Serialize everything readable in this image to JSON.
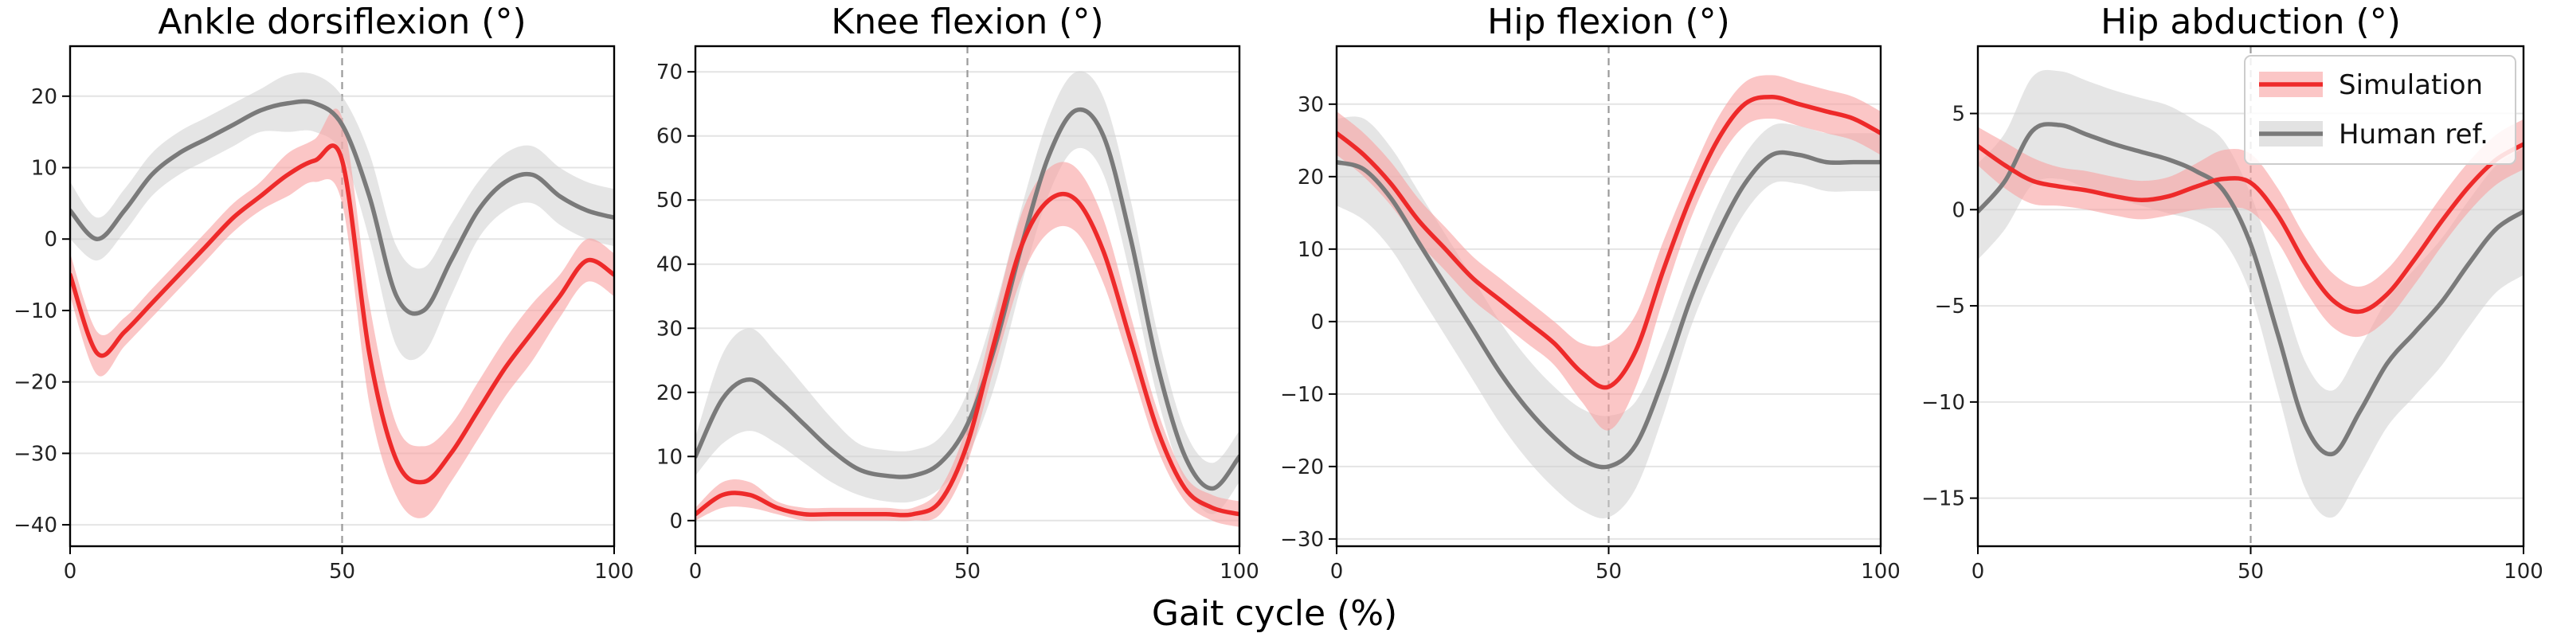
{
  "figure": {
    "xlabel": "Gait cycle (%)"
  },
  "legend": {
    "placement": "top-right",
    "items": [
      {
        "label": "Simulation",
        "color": "#ee2a2a",
        "band_color": "#f9a0a0"
      },
      {
        "label": "Human ref.",
        "color": "#7a7a7a",
        "band_color": "#cfcfcf"
      }
    ]
  },
  "chart_data": [
    {
      "type": "line",
      "title": "Ankle dorsiflexion (°)",
      "xlim": [
        0,
        100
      ],
      "ylim": [
        -43,
        27
      ],
      "xticks": [
        0,
        50,
        100
      ],
      "yticks": [
        -40,
        -30,
        -20,
        -10,
        0,
        10,
        20
      ],
      "grid": "horizontal",
      "vline": 50,
      "x": [
        0,
        5,
        10,
        15,
        20,
        25,
        30,
        35,
        40,
        45,
        50,
        55,
        60,
        65,
        70,
        75,
        80,
        85,
        90,
        95,
        100
      ],
      "series": [
        {
          "name": "Simulation",
          "mean": [
            -5,
            -16,
            -13,
            -9,
            -5,
            -1,
            3,
            6,
            9,
            11,
            11,
            -16,
            -31,
            -34,
            -30,
            -24,
            -18,
            -13,
            -8,
            -3,
            -5
          ],
          "sd": [
            3,
            3,
            2,
            2,
            2,
            2,
            2,
            2,
            3,
            3,
            6,
            7,
            5,
            5,
            4,
            4,
            4,
            4,
            3,
            3,
            3
          ]
        },
        {
          "name": "Human ref.",
          "mean": [
            4,
            0,
            4,
            9,
            12,
            14,
            16,
            18,
            19,
            19,
            16,
            6,
            -8,
            -10,
            -3,
            4,
            8,
            9,
            6,
            4,
            3
          ],
          "sd": [
            4,
            3,
            3,
            3,
            3,
            3,
            3,
            3,
            4,
            4,
            4,
            6,
            7,
            6,
            5,
            4,
            4,
            4,
            4,
            4,
            4
          ]
        }
      ]
    },
    {
      "type": "line",
      "title": "Knee flexion (°)",
      "xlim": [
        0,
        100
      ],
      "ylim": [
        -4,
        74
      ],
      "xticks": [
        0,
        50,
        100
      ],
      "yticks": [
        0,
        10,
        20,
        30,
        40,
        50,
        60,
        70
      ],
      "grid": "horizontal",
      "vline": 50,
      "x": [
        0,
        5,
        10,
        15,
        20,
        25,
        30,
        35,
        40,
        45,
        50,
        55,
        60,
        65,
        70,
        75,
        80,
        85,
        90,
        95,
        100
      ],
      "series": [
        {
          "name": "Simulation",
          "mean": [
            1,
            4,
            4,
            2,
            1,
            1,
            1,
            1,
            1,
            3,
            12,
            28,
            43,
            50,
            50,
            42,
            28,
            14,
            5,
            2,
            1
          ],
          "sd": [
            1,
            2,
            2,
            1,
            1,
            1,
            1,
            1,
            1,
            2,
            3,
            4,
            5,
            5,
            5,
            5,
            4,
            3,
            2,
            2,
            2
          ]
        },
        {
          "name": "Human ref.",
          "mean": [
            10,
            19,
            22,
            19,
            15,
            11,
            8,
            7,
            7,
            9,
            15,
            27,
            43,
            57,
            64,
            60,
            44,
            24,
            10,
            5,
            10
          ],
          "sd": [
            3,
            7,
            8,
            7,
            6,
            5,
            4,
            4,
            4,
            4,
            5,
            6,
            6,
            6,
            6,
            6,
            6,
            5,
            4,
            4,
            4
          ]
        }
      ]
    },
    {
      "type": "line",
      "title": "Hip flexion (°)",
      "xlim": [
        0,
        100
      ],
      "ylim": [
        -31,
        38
      ],
      "xticks": [
        0,
        50,
        100
      ],
      "yticks": [
        -30,
        -20,
        -10,
        0,
        10,
        20,
        30
      ],
      "grid": "horizontal",
      "vline": 50,
      "x": [
        0,
        5,
        10,
        15,
        20,
        25,
        30,
        35,
        40,
        45,
        50,
        55,
        60,
        65,
        70,
        75,
        80,
        85,
        90,
        95,
        100
      ],
      "series": [
        {
          "name": "Simulation",
          "mean": [
            26,
            23,
            19,
            14,
            10,
            6,
            3,
            0,
            -3,
            -7,
            -9,
            -4,
            7,
            17,
            25,
            30,
            31,
            30,
            29,
            28,
            26
          ],
          "sd": [
            3,
            3,
            3,
            3,
            3,
            3,
            3,
            3,
            3,
            4,
            6,
            5,
            4,
            3,
            3,
            3,
            3,
            3,
            3,
            3,
            3
          ]
        },
        {
          "name": "Human ref.",
          "mean": [
            22,
            21,
            17,
            11,
            5,
            -1,
            -7,
            -12,
            -16,
            -19,
            -20,
            -17,
            -8,
            3,
            12,
            19,
            23,
            23,
            22,
            22,
            22
          ],
          "sd": [
            6,
            7,
            7,
            7,
            7,
            7,
            7,
            7,
            7,
            7,
            7,
            6,
            5,
            4,
            4,
            4,
            4,
            4,
            4,
            4,
            4
          ]
        }
      ]
    },
    {
      "type": "line",
      "title": "Hip abduction (°)",
      "xlim": [
        0,
        100
      ],
      "ylim": [
        -17.5,
        8.5
      ],
      "xticks": [
        0,
        50,
        100
      ],
      "yticks": [
        -15,
        -10,
        -5,
        0,
        5
      ],
      "grid": "horizontal",
      "vline": 50,
      "x": [
        0,
        5,
        10,
        15,
        20,
        25,
        30,
        35,
        40,
        45,
        50,
        55,
        60,
        65,
        70,
        75,
        80,
        85,
        90,
        95,
        100
      ],
      "series": [
        {
          "name": "Simulation",
          "mean": [
            3.3,
            2.3,
            1.5,
            1.2,
            1.0,
            0.7,
            0.5,
            0.7,
            1.2,
            1.6,
            1.4,
            -0.3,
            -2.8,
            -4.7,
            -5.3,
            -4.4,
            -2.6,
            -0.6,
            1.2,
            2.6,
            3.4
          ],
          "sd": [
            1.0,
            1.2,
            1.2,
            1.0,
            1.0,
            1.0,
            1.0,
            1.0,
            1.2,
            1.5,
            1.5,
            1.4,
            1.4,
            1.4,
            1.3,
            1.3,
            1.3,
            1.3,
            1.3,
            1.3,
            1.3
          ]
        },
        {
          "name": "Human ref.",
          "mean": [
            -0.1,
            1.5,
            4.1,
            4.4,
            3.9,
            3.4,
            3.0,
            2.6,
            2.0,
            1.0,
            -1.8,
            -6.5,
            -11.2,
            -12.7,
            -10.5,
            -8.0,
            -6.4,
            -4.8,
            -2.8,
            -1.0,
            -0.1
          ],
          "sd": [
            2.5,
            2.5,
            2.8,
            2.8,
            2.8,
            2.8,
            2.8,
            2.8,
            2.6,
            2.6,
            2.6,
            3.0,
            3.3,
            3.3,
            3.3,
            3.3,
            3.3,
            3.3,
            3.3,
            3.3,
            3.3
          ]
        }
      ]
    }
  ]
}
